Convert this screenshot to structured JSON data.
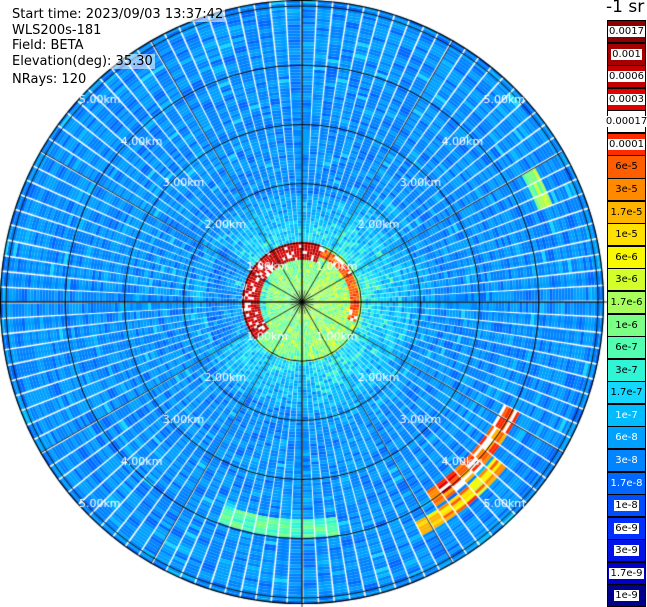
{
  "header": {
    "start_time": "Start time: 2023/09/03 13:37:42",
    "instrument": "WLS200s-181",
    "field": "Field: BETA",
    "elevation": "Elevation(deg): 35.30",
    "nrays": "NRays: 120"
  },
  "colorbar": {
    "unit_title": "-1 sr",
    "levels": [
      {
        "label": "0.0017",
        "color": "#8b0000"
      },
      {
        "label": "0.001",
        "color": "#a50000"
      },
      {
        "label": "0.0006",
        "color": "#c40000"
      },
      {
        "label": "0.0003",
        "color": "#e00000"
      },
      {
        "label": "0.00017",
        "color": "#ffffff"
      },
      {
        "label": "0.0001",
        "color": "#ff2a00"
      },
      {
        "label": "6e-5",
        "color": "#ff5e00"
      },
      {
        "label": "3e-5",
        "color": "#ff8a00"
      },
      {
        "label": "1.7e-5",
        "color": "#ffb400"
      },
      {
        "label": "1e-5",
        "color": "#ffe000"
      },
      {
        "label": "6e-6",
        "color": "#f8f800"
      },
      {
        "label": "3e-6",
        "color": "#d2ff2c"
      },
      {
        "label": "1.7e-6",
        "color": "#a6ff5a"
      },
      {
        "label": "1e-6",
        "color": "#7cff86"
      },
      {
        "label": "6e-7",
        "color": "#52ffb0"
      },
      {
        "label": "3e-7",
        "color": "#30f4d6"
      },
      {
        "label": "1.7e-7",
        "color": "#14d8ff"
      },
      {
        "label": "1e-7",
        "color": "#00bcff"
      },
      {
        "label": "6e-8",
        "color": "#00a0ff"
      },
      {
        "label": "3e-8",
        "color": "#0084ff"
      },
      {
        "label": "1.7e-8",
        "color": "#0068ff"
      },
      {
        "label": "1e-8",
        "color": "#004cff"
      },
      {
        "label": "6e-9",
        "color": "#0030ff"
      },
      {
        "label": "3e-9",
        "color": "#0014e8"
      },
      {
        "label": "1.7e-9",
        "color": "#0000c8"
      },
      {
        "label": "1e-9",
        "color": "#00008b"
      }
    ]
  },
  "map": {
    "range_rings": [
      {
        "label": "1.00km",
        "km": 1.0
      },
      {
        "label": "2.00km",
        "km": 2.0
      },
      {
        "label": "3.00km",
        "km": 3.0
      },
      {
        "label": "4.00km",
        "km": 4.0
      },
      {
        "label": "5.00km",
        "km": 5.0
      }
    ],
    "max_range_km": 5.0
  }
}
